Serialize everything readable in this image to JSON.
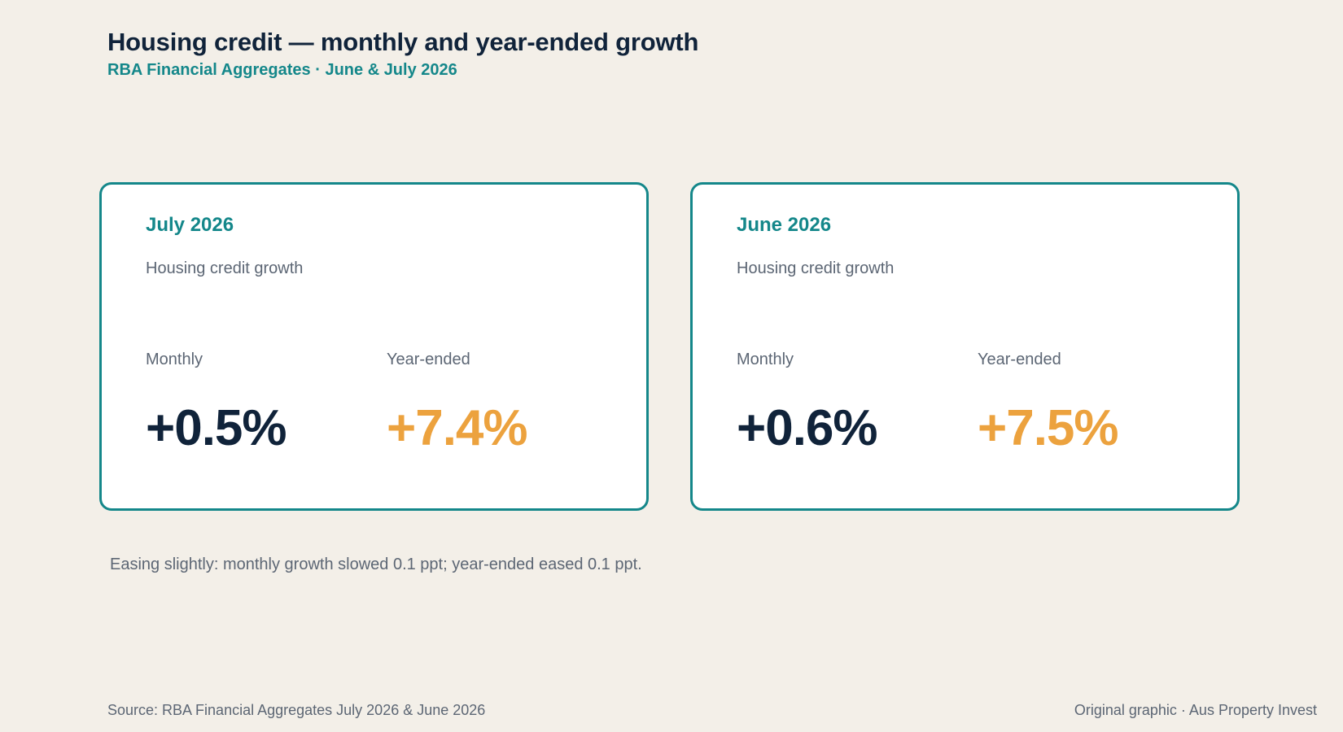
{
  "header": {
    "title": "Housing credit — monthly and year-ended growth",
    "subtitle": "RBA Financial Aggregates · June & July 2026"
  },
  "cards": [
    {
      "period": "July 2026",
      "description": "Housing credit growth",
      "monthly_label": "Monthly",
      "monthly_value": "+0.5%",
      "year_label": "Year-ended",
      "year_value": "+7.4%"
    },
    {
      "period": "June 2026",
      "description": "Housing credit growth",
      "monthly_label": "Monthly",
      "monthly_value": "+0.6%",
      "year_label": "Year-ended",
      "year_value": "+7.5%"
    }
  ],
  "note": "Easing slightly: monthly growth slowed 0.1 ppt; year-ended eased 0.1 ppt.",
  "footer": {
    "source": "Source: RBA Financial Aggregates July 2026 & June 2026",
    "credit": "Original graphic · Aus Property Invest"
  },
  "colors": {
    "background": "#f3efe8",
    "accent": "#14878a",
    "monthly_value": "#10233a",
    "year_value": "#eca23e",
    "muted_text": "#5c6674"
  }
}
